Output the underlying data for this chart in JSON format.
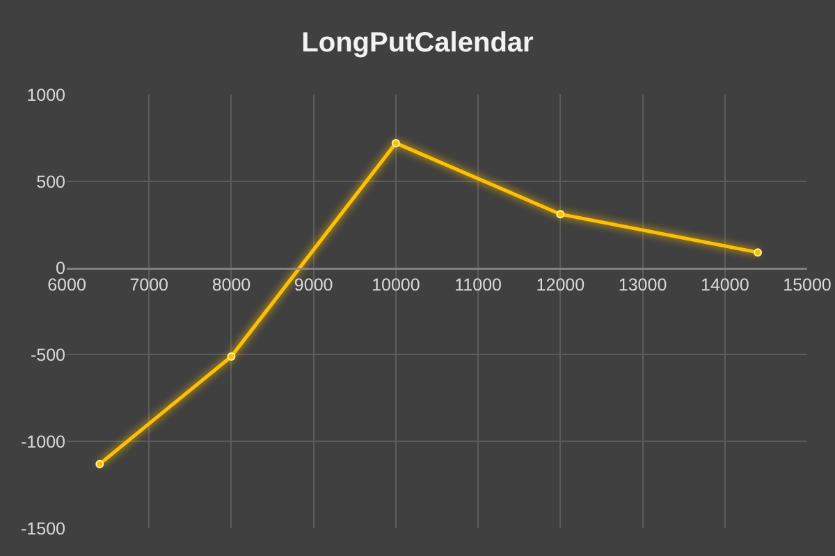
{
  "chart_data": {
    "type": "line",
    "title": "LongPutCalendar",
    "x": [
      6400,
      8000,
      10000,
      12000,
      14400
    ],
    "values": [
      -1130,
      -510,
      720,
      310,
      90
    ],
    "color": "#ffc000",
    "xlim": [
      6000,
      15000
    ],
    "xticks": [
      6000,
      7000,
      8000,
      9000,
      10000,
      11000,
      12000,
      13000,
      14000,
      15000
    ],
    "ylim": [
      -1500,
      1000
    ],
    "yticks": [
      -1500,
      -1000,
      -500,
      0,
      500,
      1000
    ],
    "grid": true,
    "marker": "circle",
    "line_style": "solid"
  }
}
